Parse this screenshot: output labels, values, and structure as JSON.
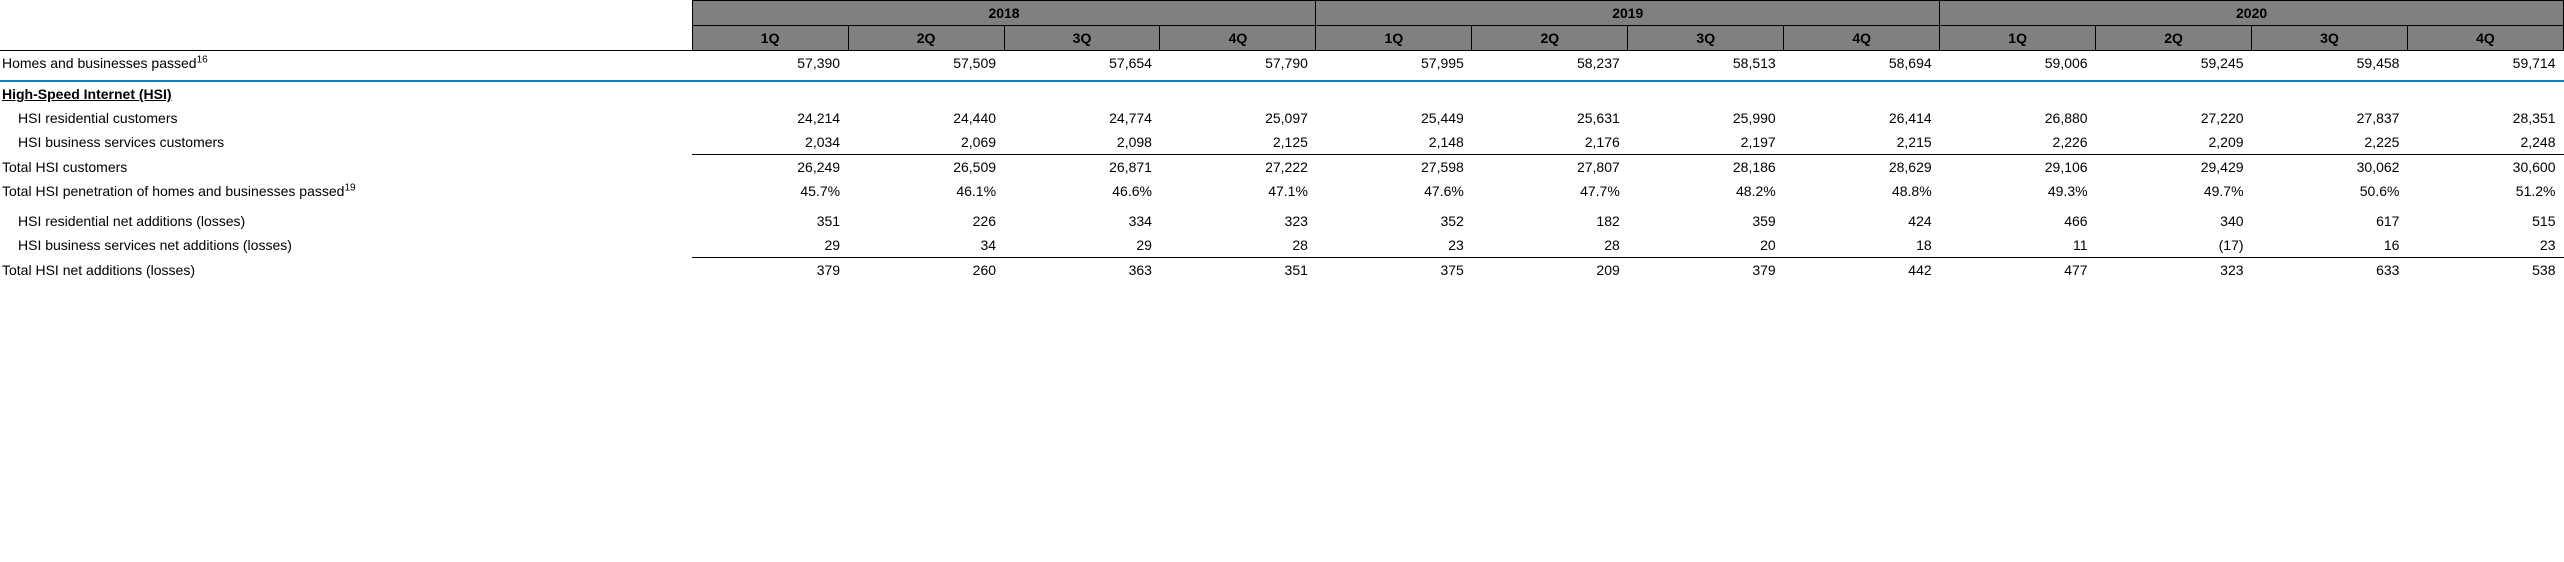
{
  "type": "table",
  "background_color": "#ffffff",
  "header_bg": "#808080",
  "header_border": "#000000",
  "accent_blue": "#1f77b4",
  "font_family": "Arial",
  "label_fontsize": 14,
  "number_fontsize": 14,
  "col_widths": {
    "label_col_pct": 27,
    "num_col_pct": 6.083
  },
  "years": [
    "2018",
    "2019",
    "2020"
  ],
  "quarters": [
    "1Q",
    "2Q",
    "3Q",
    "4Q"
  ],
  "section_title": "High-Speed Internet (HSI)",
  "rows": [
    {
      "id": "homes",
      "label": "Homes and businesses passed",
      "sup": "16",
      "indent": 0,
      "top_border": true,
      "values": [
        "57,390",
        "57,509",
        "57,654",
        "57,790",
        "57,995",
        "58,237",
        "58,513",
        "58,694",
        "59,006",
        "59,245",
        "59,458",
        "59,714"
      ]
    },
    {
      "id": "hsi_res",
      "label": "HSI residential customers",
      "indent": 1,
      "values": [
        "24,214",
        "24,440",
        "24,774",
        "25,097",
        "25,449",
        "25,631",
        "25,990",
        "26,414",
        "26,880",
        "27,220",
        "27,837",
        "28,351"
      ]
    },
    {
      "id": "hsi_biz",
      "label": "HSI business services customers",
      "indent": 1,
      "values": [
        "2,034",
        "2,069",
        "2,098",
        "2,125",
        "2,148",
        "2,176",
        "2,197",
        "2,215",
        "2,226",
        "2,209",
        "2,225",
        "2,248"
      ]
    },
    {
      "id": "hsi_total",
      "label": "Total HSI customers",
      "indent": 0,
      "thin_top": true,
      "values": [
        "26,249",
        "26,509",
        "26,871",
        "27,222",
        "27,598",
        "27,807",
        "28,186",
        "28,629",
        "29,106",
        "29,429",
        "30,062",
        "30,600"
      ]
    },
    {
      "id": "hsi_pen",
      "label": "Total HSI penetration of homes and businesses passed",
      "sup": "19",
      "indent": 0,
      "values": [
        "45.7%",
        "46.1%",
        "46.6%",
        "47.1%",
        "47.6%",
        "47.7%",
        "48.2%",
        "48.8%",
        "49.3%",
        "49.7%",
        "50.6%",
        "51.2%"
      ]
    },
    {
      "id": "res_adds",
      "label": "HSI residential net additions (losses)",
      "indent": 1,
      "values": [
        "351",
        "226",
        "334",
        "323",
        "352",
        "182",
        "359",
        "424",
        "466",
        "340",
        "617",
        "515"
      ]
    },
    {
      "id": "biz_adds",
      "label": "HSI business services net additions (losses)",
      "indent": 1,
      "values": [
        "29",
        "34",
        "29",
        "28",
        "23",
        "28",
        "20",
        "18",
        "11",
        "(17)",
        "16",
        "23"
      ]
    },
    {
      "id": "total_adds",
      "label": "Total HSI net additions (losses)",
      "indent": 0,
      "thin_top": true,
      "values": [
        "379",
        "260",
        "363",
        "351",
        "375",
        "209",
        "379",
        "442",
        "477",
        "323",
        "633",
        "538"
      ]
    }
  ]
}
